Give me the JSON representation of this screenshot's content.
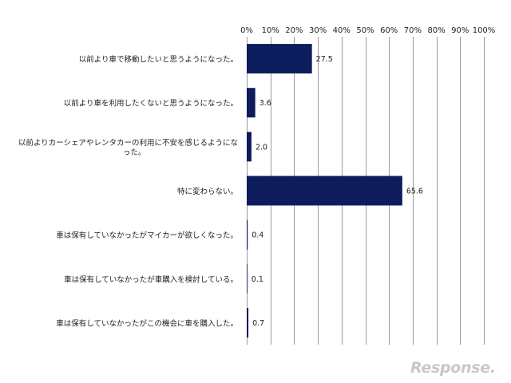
{
  "chart_data": {
    "type": "bar",
    "orientation": "horizontal",
    "categories": [
      [
        "以前より車で移動したいと思うようになった。"
      ],
      [
        "以前より車を利用したくないと思うようになった。"
      ],
      [
        "以前よりカーシェアやレンタカーの利用に不安を感じるようにな",
        "った。"
      ],
      [
        "特に変わらない。"
      ],
      [
        "車は保有していなかったがマイカーが欲しくなった。"
      ],
      [
        "車は保有していなかったが車購入を検討している。"
      ],
      [
        "車は保有していなかったがこの機会に車を購入した。"
      ]
    ],
    "values": [
      27.5,
      3.6,
      2.0,
      65.6,
      0.4,
      0.1,
      0.7
    ],
    "value_labels": [
      "27.5",
      "3.6",
      "2.0",
      "65.6",
      "0.4",
      "0.1",
      "0.7"
    ],
    "xlim": [
      0,
      100
    ],
    "x_ticks": [
      0,
      10,
      20,
      30,
      40,
      50,
      60,
      70,
      80,
      90,
      100
    ],
    "x_tick_labels": [
      "0%",
      "10%",
      "20%",
      "30%",
      "40%",
      "50%",
      "60%",
      "70%",
      "80%",
      "90%",
      "100%"
    ],
    "x_axis_position": "top",
    "grid": true,
    "bar_color": "#0d1c5c",
    "grid_color": "#9a9a9a",
    "title": "",
    "xlabel": "",
    "ylabel": ""
  },
  "watermark": {
    "text": "Response.",
    "color": "#c8c8c8"
  }
}
